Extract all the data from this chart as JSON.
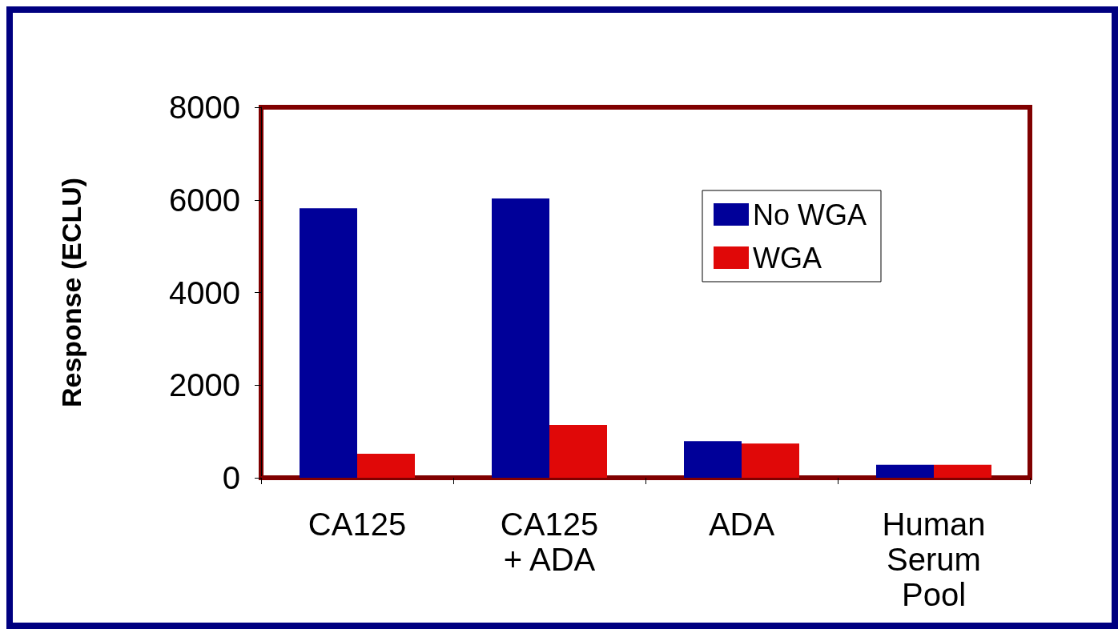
{
  "chart_data": {
    "type": "bar",
    "ylabel": "Response (ECLU)",
    "categories": [
      "CA125",
      "CA125\n+ ADA",
      "ADA",
      "Human\nSerum\nPool"
    ],
    "series": [
      {
        "name": "No WGA",
        "color": "#000099",
        "values": [
          5820,
          6030,
          790,
          280
        ]
      },
      {
        "name": "WGA",
        "color": "#e00808",
        "values": [
          520,
          1140,
          740,
          280
        ]
      }
    ],
    "ylim": [
      0,
      8000
    ],
    "yticks": [
      0,
      2000,
      4000,
      6000,
      8000
    ],
    "grid": false,
    "legend": "top right"
  }
}
